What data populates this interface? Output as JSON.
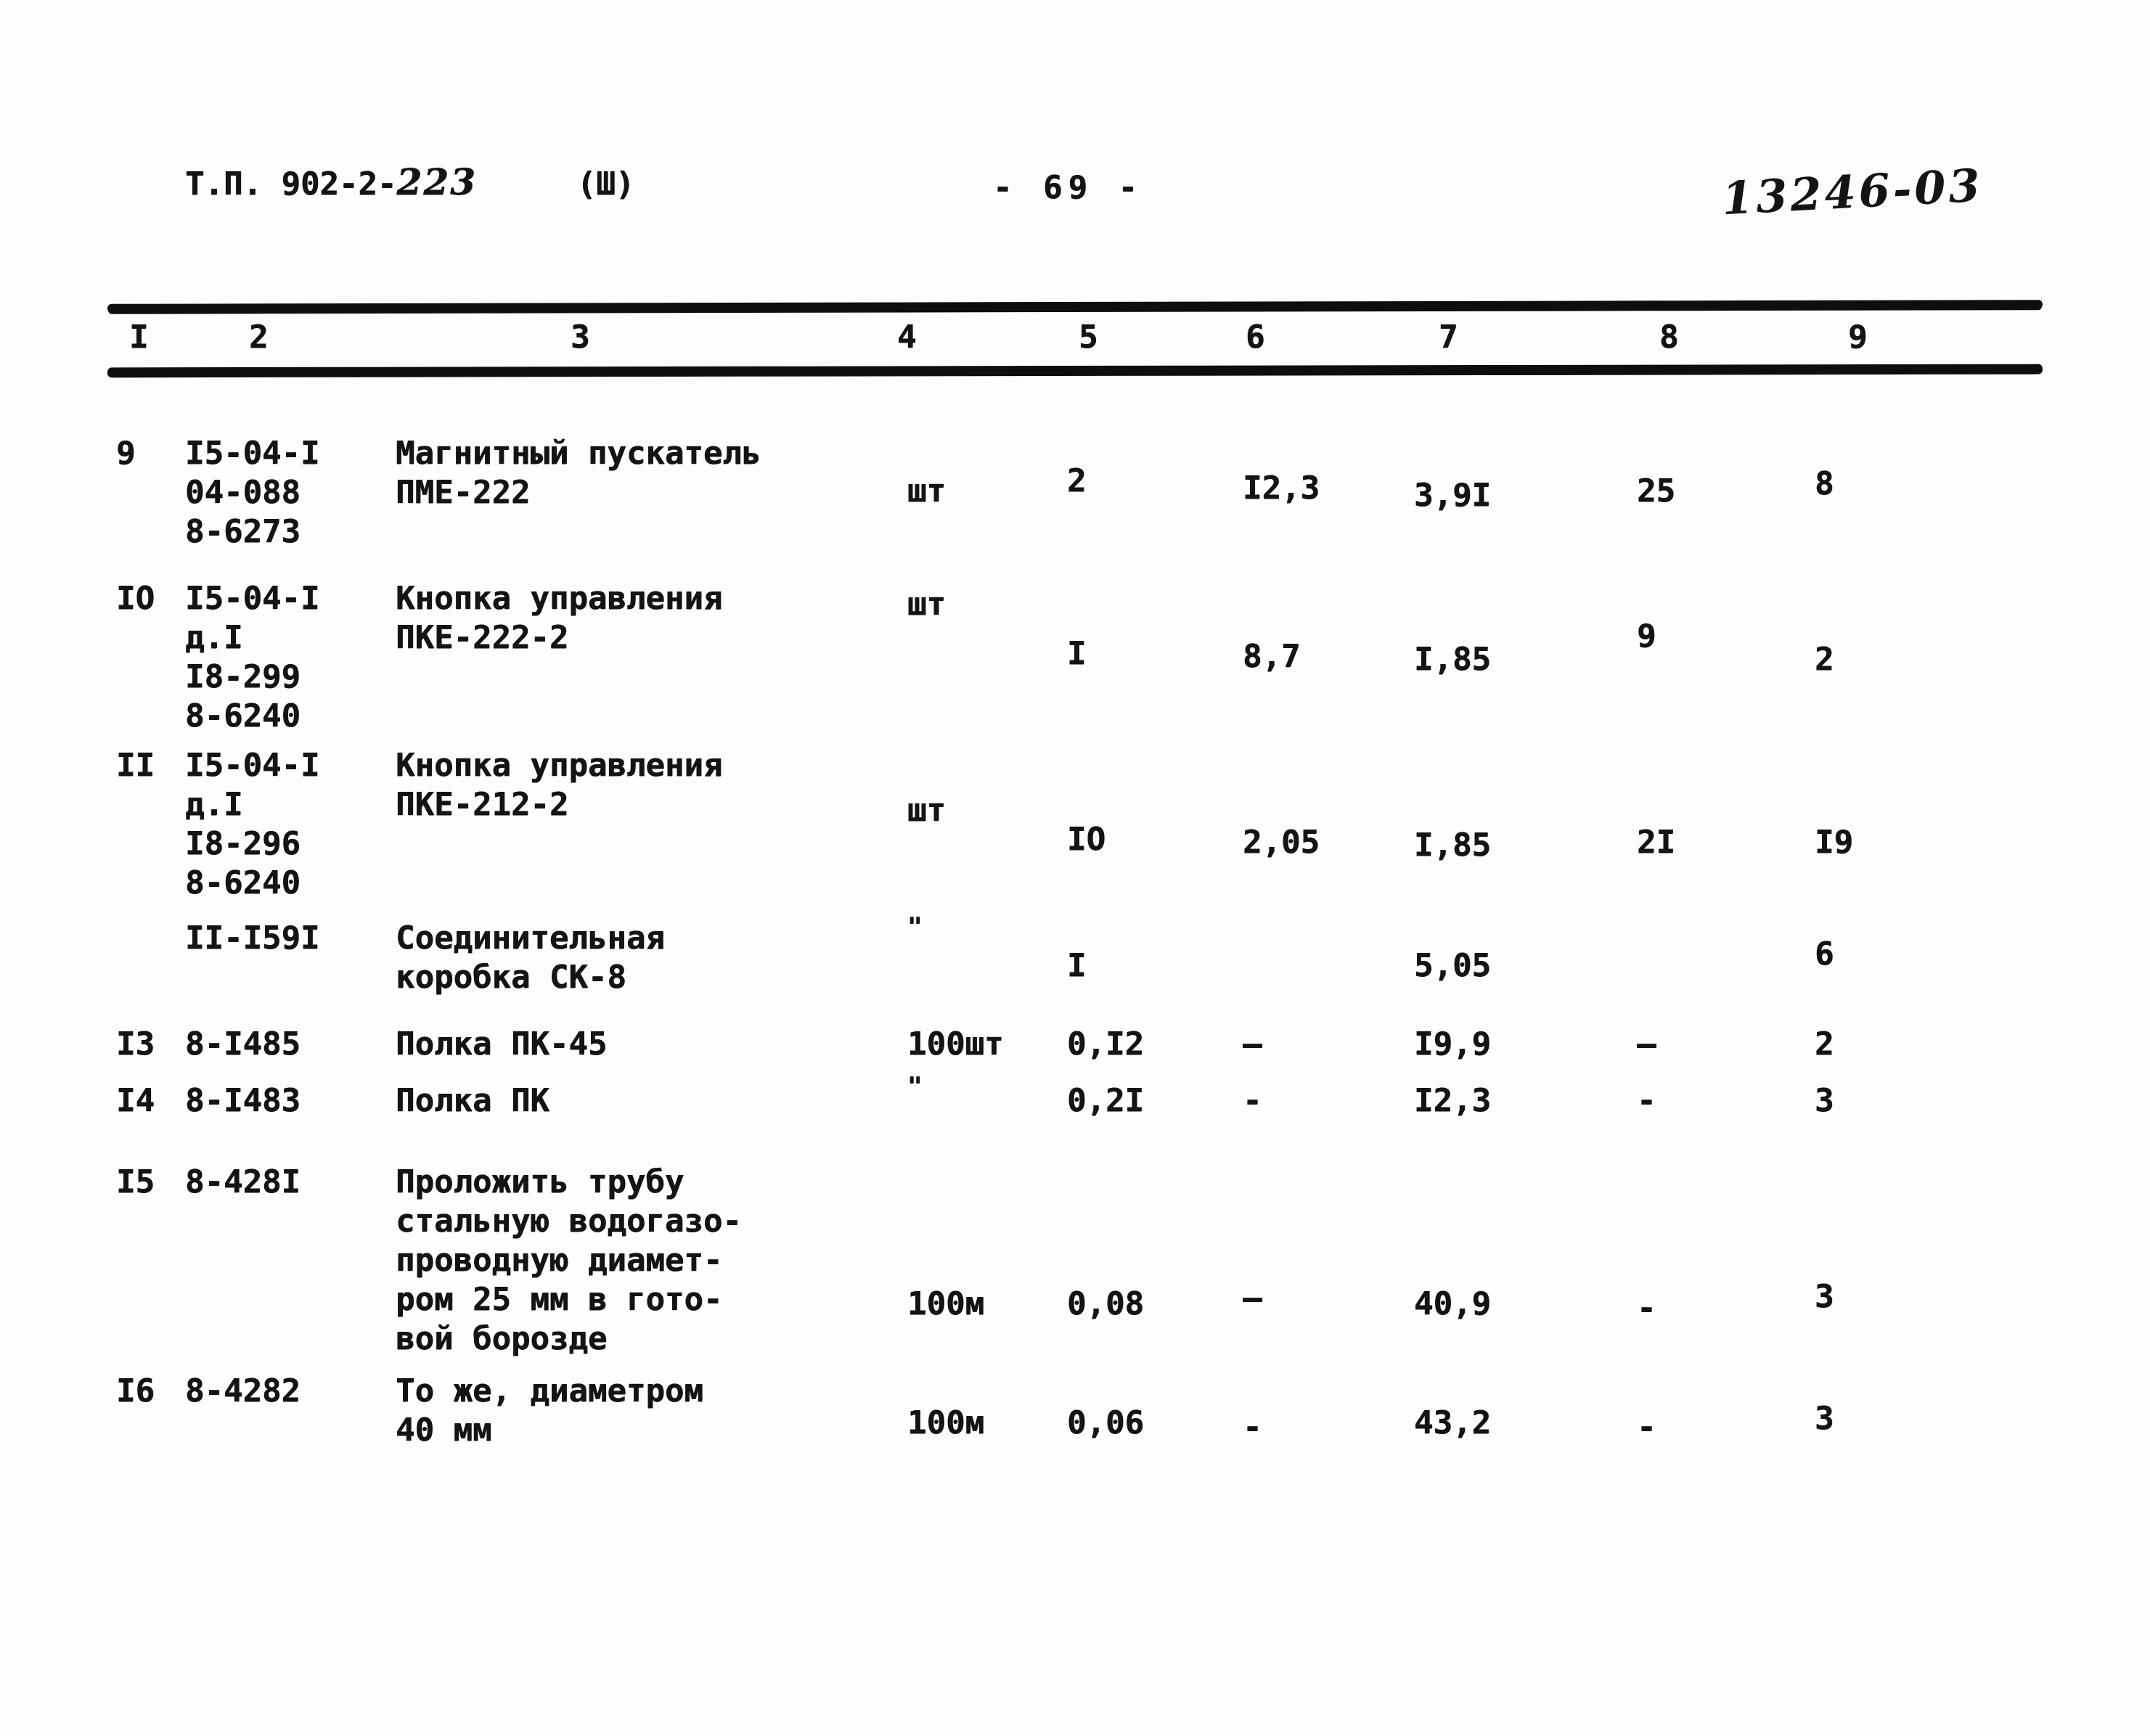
{
  "header": {
    "doc_code_prefix": "Т.П. 902-2-",
    "doc_code_handwritten": "223",
    "doc_code_suffix": "(Ш)",
    "page_number": "- 69 -",
    "stamp_handwritten": "13246-03"
  },
  "table": {
    "column_headers": [
      "I",
      "2",
      "3",
      "4",
      "5",
      "6",
      "7",
      "8",
      "9"
    ],
    "rows": [
      {
        "cells": [
          "9",
          "I5-04-I\n04-088\n8-6273",
          "Магнитный пускатель\nПМЕ-222",
          "шт",
          "2",
          "I2,3",
          "3,9I",
          "25",
          "8"
        ]
      },
      {
        "cells": [
          "IO",
          "I5-04-I\nд.I\nI8-299\n8-6240",
          "Кнопка управления\nПКЕ-222-2",
          "шт",
          "I",
          "8,7",
          "I,85",
          "9",
          "2"
        ]
      },
      {
        "cells": [
          "II",
          "I5-04-I\nд.I\nI8-296\n8-6240",
          "Кнопка управления\nПКЕ-212-2",
          "шт",
          "IO",
          "2,05",
          "I,85",
          "2I",
          "I9"
        ]
      },
      {
        "cells": [
          "",
          "II-I59I",
          "Соединительная\nкоробка СК-8",
          "\"",
          "I",
          "",
          "5,05",
          "",
          "6"
        ]
      },
      {
        "cells": [
          "I3",
          "8-I485",
          "Полка ПК-45",
          "100шт",
          "0,I2",
          "–",
          "I9,9",
          "–",
          "2"
        ]
      },
      {
        "cells": [
          "I4",
          "8-I483",
          "Полка ПК",
          "\"",
          "0,2I",
          "-",
          "I2,3",
          "-",
          "3"
        ]
      },
      {
        "cells": [
          "I5",
          "8-428I",
          "Проложить трубу\nстальную водогазо-\nпроводную диамет-\nром 25 мм в гото-\nвой борозде",
          "100м",
          "0,08",
          "—",
          "40,9",
          "-",
          "3"
        ]
      },
      {
        "cells": [
          "I6",
          "8-4282",
          "То же, диаметром\n40 мм",
          "100м",
          "0,06",
          "-",
          "43,2",
          "-",
          "3"
        ]
      }
    ]
  }
}
